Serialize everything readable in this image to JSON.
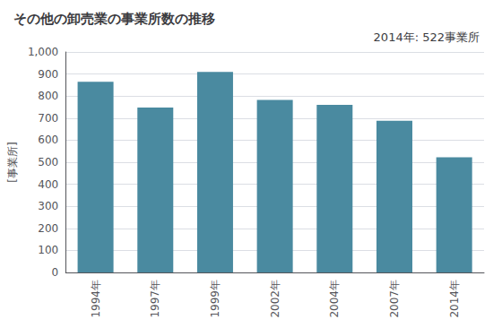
{
  "chart_data": {
    "type": "bar",
    "title": "その他の卸売業の事業所数の推移",
    "ylabel": "[事業所]",
    "annotation": "2014年: 522事業所",
    "categories": [
      "1994年",
      "1997年",
      "1999年",
      "2002年",
      "2004年",
      "2007年",
      "2014年"
    ],
    "values": [
      865,
      748,
      910,
      783,
      760,
      688,
      522
    ],
    "color": "#4a8aa0",
    "ylim": [
      0,
      1000
    ],
    "yticks": [
      0,
      100,
      200,
      300,
      400,
      500,
      600,
      700,
      800,
      900,
      {
        "value": 1000,
        "label": "1,000"
      }
    ],
    "grid": true
  }
}
